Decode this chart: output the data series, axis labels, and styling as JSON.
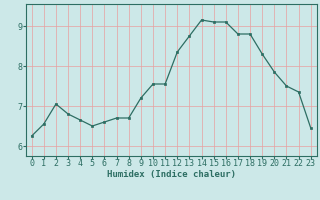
{
  "x": [
    0,
    1,
    2,
    3,
    4,
    5,
    6,
    7,
    8,
    9,
    10,
    11,
    12,
    13,
    14,
    15,
    16,
    17,
    18,
    19,
    20,
    21,
    22,
    23
  ],
  "y": [
    6.25,
    6.55,
    7.05,
    6.8,
    6.65,
    6.5,
    6.6,
    6.7,
    6.7,
    7.2,
    7.55,
    7.55,
    8.35,
    8.75,
    9.15,
    9.1,
    9.1,
    8.8,
    8.8,
    8.3,
    7.85,
    7.5,
    7.35,
    6.45
  ],
  "xlabel": "Humidex (Indice chaleur)",
  "xlim": [
    -0.5,
    23.5
  ],
  "ylim": [
    5.75,
    9.55
  ],
  "yticks": [
    6,
    7,
    8,
    9
  ],
  "xticks": [
    0,
    1,
    2,
    3,
    4,
    5,
    6,
    7,
    8,
    9,
    10,
    11,
    12,
    13,
    14,
    15,
    16,
    17,
    18,
    19,
    20,
    21,
    22,
    23
  ],
  "line_color": "#2d6e63",
  "marker_color": "#2d6e63",
  "bg_color": "#cce8e8",
  "grid_color": "#e8a0a0",
  "axis_color": "#2d6e63",
  "label_color": "#2d6e63",
  "tick_color": "#2d6e63",
  "xlabel_fontsize": 6.5,
  "tick_fontsize": 6.0
}
